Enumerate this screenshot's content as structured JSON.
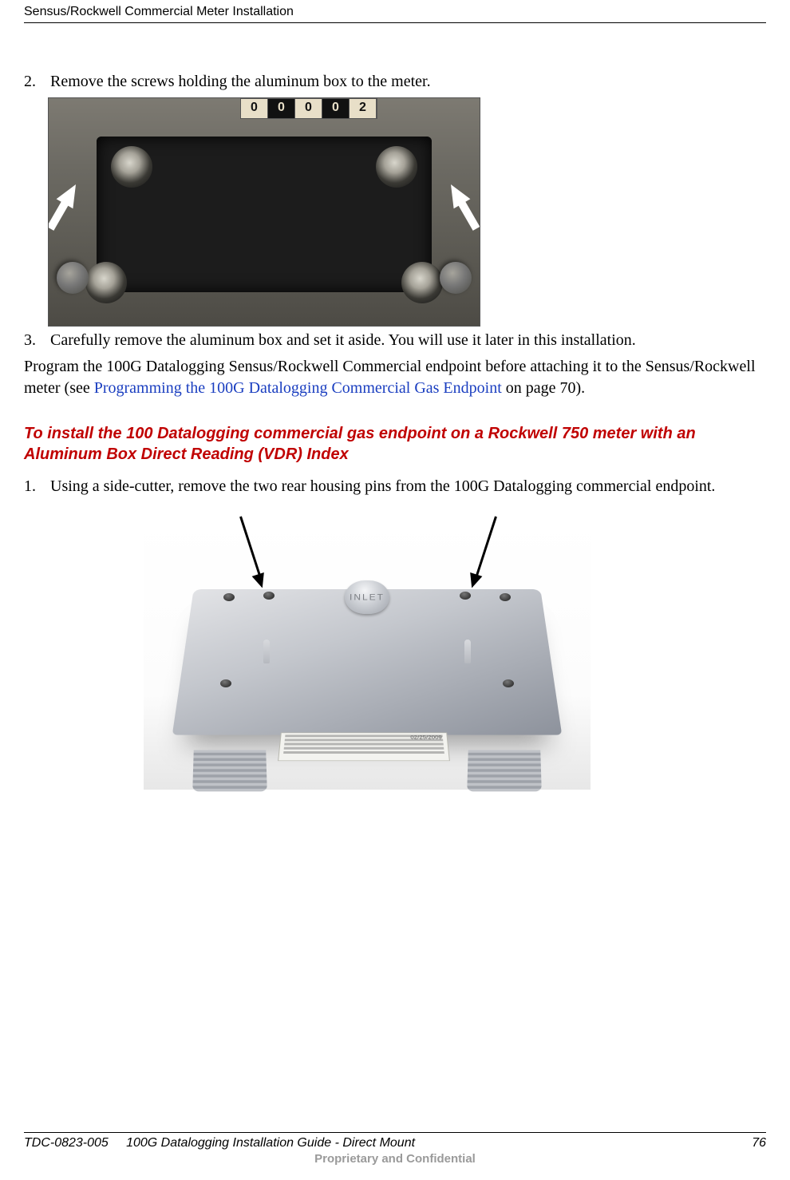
{
  "header": {
    "title": "Sensus/Rockwell Commercial Meter Installation"
  },
  "steps": {
    "s2": {
      "num": "2.",
      "text": "Remove the screws holding the aluminum box to the meter."
    },
    "s3": {
      "num": "3.",
      "text": "Carefully remove the aluminum box and set it aside. You will use it later in this installation."
    }
  },
  "fig1": {
    "counter_digits": [
      "0",
      "0",
      "0",
      "0",
      "2"
    ]
  },
  "programPara": {
    "lead": "Program the 100G Datalogging Sensus/Rockwell Commercial endpoint before attaching it to the Sensus/Rockwell meter (see ",
    "link": "Programming the 100G Datalogging Commercial Gas Endpoint",
    "tail": " on page 70)."
  },
  "sectionHeading": "To install the 100 Datalogging commercial gas endpoint on a Rockwell 750  meter with an Aluminum Box Direct Reading (VDR) Index",
  "step1": {
    "num": "1.",
    "text": "Using a side-cutter, remove the two rear housing pins from the 100G Datalogging commercial endpoint."
  },
  "fig2": {
    "inlet": "INLET",
    "sticker_date": "02/25/2009"
  },
  "footer": {
    "doc": "TDC-0823-005",
    "title": "100G Datalogging Installation Guide - Direct Mount",
    "page": "76",
    "confidential": "Proprietary and Confidential"
  },
  "colors": {
    "link": "#1a3ec0",
    "heading": "#c00000",
    "footer_sub": "#9a9a9a"
  }
}
